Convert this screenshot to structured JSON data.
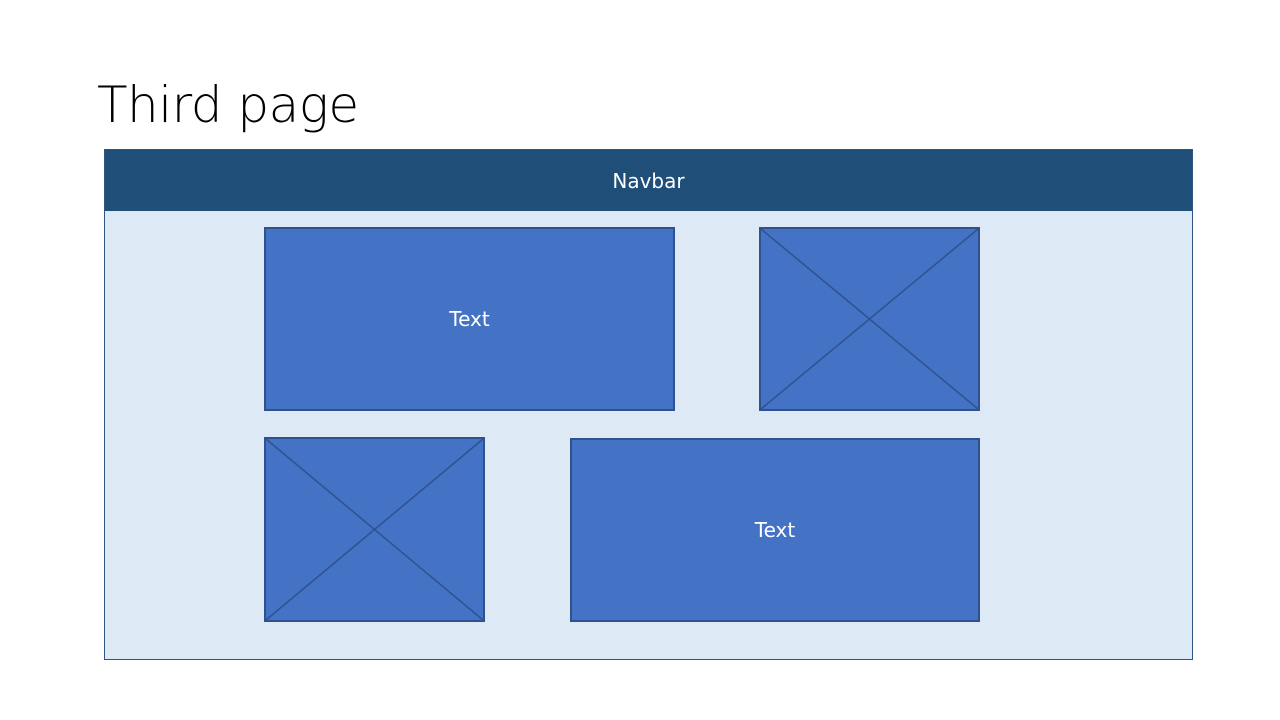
{
  "title": "Third page",
  "navbar": {
    "label": "Navbar"
  },
  "blocks": {
    "top_left_text": "Text",
    "bottom_right_text": "Text"
  },
  "colors": {
    "navbar": "#1f4e79",
    "frame_fill": "#dde9f5",
    "block_fill": "#4472c4",
    "block_border": "#2f528f"
  },
  "icons": {
    "image_placeholder": "crossed-box-icon"
  }
}
